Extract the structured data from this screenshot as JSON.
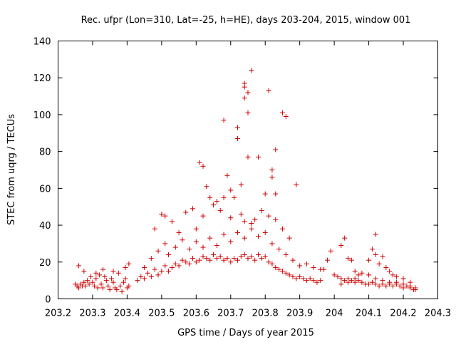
{
  "chart_data": {
    "type": "scatter",
    "title": "Rec. ufpr (Lon=310, Lat=-25, h=HE), days 203-204, 2015, window 001",
    "xlabel": "GPS time / Days of year 2015",
    "ylabel": "STEC from uqrg / TECUs",
    "xlim": [
      203.2,
      204.3
    ],
    "ylim": [
      0,
      140
    ],
    "x_ticks": [
      "203.2",
      "203.3",
      "203.4",
      "203.5",
      "203.6",
      "203.7",
      "203.8",
      "203.9",
      "204",
      "204.1",
      "204.2",
      "204.3"
    ],
    "y_ticks": [
      "0",
      "20",
      "40",
      "60",
      "80",
      "100",
      "120",
      "140"
    ],
    "marker": "+",
    "color": "#d00000",
    "series": [
      {
        "name": "STEC",
        "points": [
          [
            203.25,
            8
          ],
          [
            203.255,
            7
          ],
          [
            203.26,
            6
          ],
          [
            203.265,
            8
          ],
          [
            203.27,
            7
          ],
          [
            203.275,
            9
          ],
          [
            203.28,
            7
          ],
          [
            203.285,
            10
          ],
          [
            203.29,
            8
          ],
          [
            203.295,
            12
          ],
          [
            203.3,
            9
          ],
          [
            203.305,
            7
          ],
          [
            203.31,
            11
          ],
          [
            203.315,
            6
          ],
          [
            203.32,
            13
          ],
          [
            203.325,
            8
          ],
          [
            203.33,
            6
          ],
          [
            203.335,
            12
          ],
          [
            203.34,
            10
          ],
          [
            203.345,
            7
          ],
          [
            203.35,
            5
          ],
          [
            203.355,
            11
          ],
          [
            203.36,
            9
          ],
          [
            203.365,
            6
          ],
          [
            203.37,
            5
          ],
          [
            203.375,
            14
          ],
          [
            203.38,
            7
          ],
          [
            203.385,
            4
          ],
          [
            203.39,
            9
          ],
          [
            203.395,
            11
          ],
          [
            203.4,
            6
          ],
          [
            203.405,
            7
          ],
          [
            203.26,
            18
          ],
          [
            203.275,
            15
          ],
          [
            203.31,
            14
          ],
          [
            203.33,
            16
          ],
          [
            203.36,
            15
          ],
          [
            203.395,
            17
          ],
          [
            203.405,
            19
          ],
          [
            203.43,
            10
          ],
          [
            203.44,
            12
          ],
          [
            203.45,
            11
          ],
          [
            203.46,
            14
          ],
          [
            203.47,
            12
          ],
          [
            203.48,
            16
          ],
          [
            203.49,
            13
          ],
          [
            203.5,
            15
          ],
          [
            203.51,
            18
          ],
          [
            203.52,
            15
          ],
          [
            203.53,
            17
          ],
          [
            203.54,
            19
          ],
          [
            203.55,
            18
          ],
          [
            203.56,
            21
          ],
          [
            203.57,
            20
          ],
          [
            203.58,
            19
          ],
          [
            203.59,
            22
          ],
          [
            203.6,
            20
          ],
          [
            203.61,
            21
          ],
          [
            203.62,
            23
          ],
          [
            203.63,
            22
          ],
          [
            203.64,
            21
          ],
          [
            203.65,
            24
          ],
          [
            203.66,
            22
          ],
          [
            203.67,
            23
          ],
          [
            203.68,
            21
          ],
          [
            203.69,
            22
          ],
          [
            203.7,
            20
          ],
          [
            203.71,
            22
          ],
          [
            203.72,
            21
          ],
          [
            203.73,
            23
          ],
          [
            203.74,
            24
          ],
          [
            203.75,
            22
          ],
          [
            203.76,
            23
          ],
          [
            203.77,
            21
          ],
          [
            203.78,
            24
          ],
          [
            203.79,
            22
          ],
          [
            203.8,
            23
          ],
          [
            203.81,
            20
          ],
          [
            203.82,
            19
          ],
          [
            203.83,
            17
          ],
          [
            203.84,
            16
          ],
          [
            203.85,
            15
          ],
          [
            203.86,
            14
          ],
          [
            203.87,
            13
          ],
          [
            203.88,
            12
          ],
          [
            203.89,
            11
          ],
          [
            203.9,
            12
          ],
          [
            203.91,
            11
          ],
          [
            203.92,
            10
          ],
          [
            203.93,
            11
          ],
          [
            203.94,
            10
          ],
          [
            203.95,
            9
          ],
          [
            203.96,
            10
          ],
          [
            203.45,
            17
          ],
          [
            203.47,
            22
          ],
          [
            203.49,
            26
          ],
          [
            203.51,
            30
          ],
          [
            203.52,
            24
          ],
          [
            203.54,
            28
          ],
          [
            203.56,
            32
          ],
          [
            203.58,
            27
          ],
          [
            203.6,
            31
          ],
          [
            203.62,
            28
          ],
          [
            203.64,
            33
          ],
          [
            203.66,
            29
          ],
          [
            203.68,
            35
          ],
          [
            203.7,
            31
          ],
          [
            203.72,
            36
          ],
          [
            203.74,
            33
          ],
          [
            203.76,
            38
          ],
          [
            203.78,
            34
          ],
          [
            203.8,
            36
          ],
          [
            203.82,
            30
          ],
          [
            203.84,
            27
          ],
          [
            203.86,
            24
          ],
          [
            203.88,
            21
          ],
          [
            203.9,
            18
          ],
          [
            203.92,
            19
          ],
          [
            203.94,
            17
          ],
          [
            203.96,
            16
          ],
          [
            203.48,
            38
          ],
          [
            203.5,
            46
          ],
          [
            203.51,
            45
          ],
          [
            203.53,
            42
          ],
          [
            203.55,
            36
          ],
          [
            203.57,
            47
          ],
          [
            203.59,
            49
          ],
          [
            203.6,
            38
          ],
          [
            203.62,
            45
          ],
          [
            203.64,
            55
          ],
          [
            203.65,
            51
          ],
          [
            203.66,
            53
          ],
          [
            203.67,
            48
          ],
          [
            203.68,
            55
          ],
          [
            203.7,
            59
          ],
          [
            203.7,
            44
          ],
          [
            203.71,
            55
          ],
          [
            203.73,
            46
          ],
          [
            203.74,
            42
          ],
          [
            203.76,
            41
          ],
          [
            203.77,
            43
          ],
          [
            203.79,
            48
          ],
          [
            203.81,
            45
          ],
          [
            203.83,
            43
          ],
          [
            203.85,
            38
          ],
          [
            203.87,
            33
          ],
          [
            203.61,
            74
          ],
          [
            203.62,
            72
          ],
          [
            203.63,
            61
          ],
          [
            203.68,
            97
          ],
          [
            203.69,
            67
          ],
          [
            203.72,
            93
          ],
          [
            203.72,
            87
          ],
          [
            203.73,
            62
          ],
          [
            203.74,
            117
          ],
          [
            203.74,
            115
          ],
          [
            203.74,
            109
          ],
          [
            203.75,
            112
          ],
          [
            203.75,
            101
          ],
          [
            203.76,
            124
          ],
          [
            203.78,
            77
          ],
          [
            203.81,
            113
          ],
          [
            203.82,
            70
          ],
          [
            203.82,
            66
          ],
          [
            203.83,
            81
          ],
          [
            203.83,
            57
          ],
          [
            203.85,
            101
          ],
          [
            203.86,
            99
          ],
          [
            203.89,
            62
          ],
          [
            203.75,
            77
          ],
          [
            203.8,
            57
          ],
          [
            203.97,
            16
          ],
          [
            203.98,
            21
          ],
          [
            203.99,
            26
          ],
          [
            204.02,
            29
          ],
          [
            204.03,
            33
          ],
          [
            204.04,
            22
          ],
          [
            204.05,
            21
          ],
          [
            204.06,
            15
          ],
          [
            204.07,
            13
          ],
          [
            204.1,
            21
          ],
          [
            204.11,
            27
          ],
          [
            204.12,
            24
          ],
          [
            204.12,
            35
          ],
          [
            204.13,
            19
          ],
          [
            204.14,
            23
          ],
          [
            204.15,
            17
          ],
          [
            204.16,
            15
          ],
          [
            204.17,
            13
          ],
          [
            204.18,
            12
          ],
          [
            204.2,
            11
          ],
          [
            204.22,
            9
          ],
          [
            204.0,
            13
          ],
          [
            204.01,
            12
          ],
          [
            204.02,
            11
          ],
          [
            204.03,
            10
          ],
          [
            204.04,
            11
          ],
          [
            204.05,
            10
          ],
          [
            204.06,
            9
          ],
          [
            204.07,
            10
          ],
          [
            204.08,
            9
          ],
          [
            204.09,
            8
          ],
          [
            204.1,
            8
          ],
          [
            204.11,
            9
          ],
          [
            204.12,
            8
          ],
          [
            204.13,
            7
          ],
          [
            204.14,
            8
          ],
          [
            204.15,
            7
          ],
          [
            204.16,
            8
          ],
          [
            204.17,
            7
          ],
          [
            204.18,
            8
          ],
          [
            204.19,
            7
          ],
          [
            204.2,
            6
          ],
          [
            204.21,
            7
          ],
          [
            204.22,
            6
          ],
          [
            204.23,
            5
          ],
          [
            204.235,
            6
          ],
          [
            204.02,
            8
          ],
          [
            204.04,
            9
          ],
          [
            204.06,
            11
          ],
          [
            204.08,
            14
          ],
          [
            204.1,
            13
          ],
          [
            204.12,
            11
          ],
          [
            204.14,
            10
          ],
          [
            204.16,
            9
          ],
          [
            204.18,
            9
          ],
          [
            204.2,
            8
          ],
          [
            204.22,
            7
          ],
          [
            204.235,
            5
          ]
        ]
      }
    ]
  }
}
